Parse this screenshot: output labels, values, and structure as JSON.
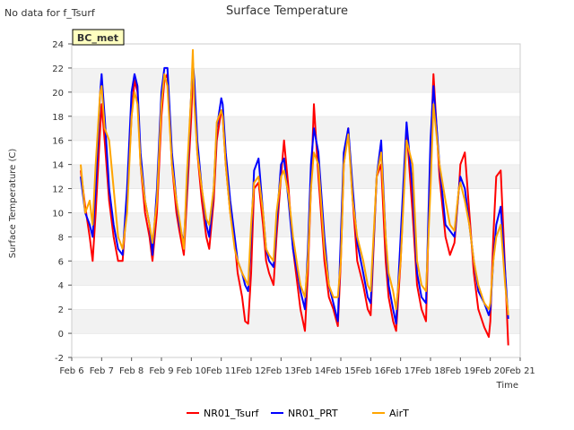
{
  "nodata_note": "No data for f_Tsurf",
  "site_badge": "BC_met",
  "chart_data": {
    "type": "line",
    "title": "Surface Temperature",
    "xlabel": "Time",
    "ylabel": "Surface Temperature (C)",
    "ylim": [
      -2,
      24
    ],
    "xlim": [
      6,
      21
    ],
    "yticks": [
      -2,
      0,
      2,
      4,
      6,
      8,
      10,
      12,
      14,
      16,
      18,
      20,
      22,
      24
    ],
    "xtick_values": [
      6,
      7,
      8,
      9,
      10,
      11,
      12,
      13,
      14,
      15,
      16,
      17,
      18,
      19,
      20,
      21
    ],
    "xtick_labels": [
      "Feb 6",
      "Feb 7",
      "Feb 8",
      "Feb 9",
      "Feb 10",
      "Feb 11",
      "Feb 12",
      "Feb 13",
      "Feb 14",
      "Feb 15",
      "Feb 16",
      "Feb 17",
      "Feb 18",
      "Feb 19",
      "Feb 20",
      "Feb 21"
    ],
    "grid": "horizontal bands",
    "legend_position": "bottom",
    "x_units": "day of February",
    "series": [
      {
        "name": "NR01_Tsurf",
        "color": "#ff0000",
        "x": [
          6.3,
          6.45,
          6.6,
          6.7,
          6.8,
          6.95,
          7.0,
          7.1,
          7.25,
          7.4,
          7.55,
          7.7,
          7.85,
          8.0,
          8.1,
          8.2,
          8.3,
          8.45,
          8.6,
          8.7,
          8.85,
          9.0,
          9.1,
          9.2,
          9.35,
          9.5,
          9.6,
          9.75,
          9.85,
          10.0,
          10.05,
          10.1,
          10.2,
          10.35,
          10.5,
          10.6,
          10.75,
          10.85,
          11.0,
          11.05,
          11.15,
          11.3,
          11.45,
          11.55,
          11.7,
          11.8,
          11.9,
          12.0,
          12.1,
          12.25,
          12.4,
          12.5,
          12.6,
          12.75,
          12.85,
          13.0,
          13.1,
          13.25,
          13.4,
          13.55,
          13.65,
          13.8,
          13.9,
          14.0,
          14.1,
          14.25,
          14.45,
          14.6,
          14.75,
          14.9,
          15.0,
          15.1,
          15.25,
          15.4,
          15.55,
          15.75,
          15.9,
          16.0,
          16.2,
          16.35,
          16.5,
          16.6,
          16.75,
          16.85,
          17.0,
          17.2,
          17.4,
          17.55,
          17.7,
          17.85,
          18.0,
          18.1,
          18.3,
          18.5,
          18.65,
          18.8,
          18.95,
          19.0,
          19.15,
          19.3,
          19.45,
          19.6,
          19.8,
          19.95,
          20.0,
          20.1,
          20.2,
          20.35,
          20.5,
          20.6
        ],
        "y": [
          13.5,
          10.5,
          8.0,
          6.0,
          10.0,
          17.0,
          19.0,
          16.0,
          11.0,
          8.0,
          6.0,
          6.0,
          11.0,
          18.0,
          21.0,
          20.0,
          14.0,
          10.0,
          8.0,
          6.0,
          10.0,
          18.0,
          21.0,
          21.5,
          14.0,
          10.0,
          8.5,
          6.5,
          11.0,
          18.0,
          21.5,
          20.0,
          15.0,
          11.0,
          8.0,
          7.0,
          11.0,
          16.0,
          18.5,
          18.0,
          14.0,
          10.0,
          7.5,
          5.0,
          3.0,
          1.0,
          0.8,
          5.0,
          12.0,
          12.5,
          9.0,
          6.0,
          5.0,
          4.0,
          8.0,
          13.0,
          16.0,
          12.0,
          7.0,
          4.0,
          2.0,
          0.2,
          5.0,
          12.0,
          19.0,
          13.0,
          6.0,
          3.0,
          2.0,
          0.6,
          6.0,
          14.0,
          17.0,
          11.0,
          6.0,
          4.0,
          2.0,
          1.5,
          13.0,
          14.0,
          6.0,
          3.0,
          1.0,
          0.2,
          6.0,
          17.0,
          10.0,
          4.0,
          2.0,
          1.0,
          15.0,
          21.5,
          13.0,
          8.0,
          6.5,
          7.5,
          12.0,
          14.0,
          15.0,
          10.0,
          5.0,
          2.0,
          0.5,
          -0.3,
          1.0,
          8.0,
          13.0,
          13.5,
          5.0,
          -1.0
        ]
      },
      {
        "name": "NR01_PRT",
        "color": "#0000ff",
        "x": [
          6.3,
          6.45,
          6.6,
          6.7,
          6.8,
          6.95,
          7.0,
          7.1,
          7.25,
          7.4,
          7.55,
          7.7,
          7.85,
          8.0,
          8.1,
          8.2,
          8.3,
          8.45,
          8.6,
          8.7,
          8.85,
          9.0,
          9.1,
          9.2,
          9.35,
          9.5,
          9.6,
          9.75,
          9.85,
          10.0,
          10.05,
          10.1,
          10.2,
          10.35,
          10.5,
          10.6,
          10.75,
          10.85,
          11.0,
          11.05,
          11.15,
          11.3,
          11.45,
          11.55,
          11.7,
          11.8,
          11.9,
          12.0,
          12.1,
          12.25,
          12.4,
          12.5,
          12.6,
          12.75,
          12.85,
          13.0,
          13.1,
          13.25,
          13.4,
          13.55,
          13.65,
          13.8,
          13.9,
          14.0,
          14.1,
          14.25,
          14.45,
          14.6,
          14.75,
          14.9,
          15.0,
          15.1,
          15.25,
          15.4,
          15.55,
          15.75,
          15.9,
          16.0,
          16.2,
          16.35,
          16.5,
          16.6,
          16.75,
          16.85,
          17.0,
          17.2,
          17.4,
          17.55,
          17.7,
          17.85,
          18.0,
          18.1,
          18.3,
          18.5,
          18.65,
          18.8,
          18.95,
          19.0,
          19.15,
          19.3,
          19.45,
          19.6,
          19.8,
          19.95,
          20.0,
          20.1,
          20.2,
          20.35,
          20.5,
          20.6
        ],
        "y": [
          13.0,
          10.0,
          9.0,
          8.0,
          12.0,
          20.0,
          21.5,
          18.0,
          12.0,
          9.0,
          7.0,
          6.5,
          12.0,
          20.0,
          21.5,
          20.5,
          15.0,
          11.0,
          9.0,
          6.5,
          12.0,
          20.0,
          22.0,
          22.0,
          15.0,
          11.0,
          9.0,
          7.5,
          12.0,
          20.0,
          22.5,
          21.0,
          16.0,
          12.0,
          9.0,
          8.0,
          12.0,
          17.0,
          19.5,
          19.0,
          15.0,
          11.0,
          8.0,
          6.0,
          5.0,
          4.0,
          3.5,
          8.0,
          13.5,
          14.5,
          10.0,
          7.0,
          6.0,
          5.5,
          9.0,
          14.0,
          14.5,
          11.0,
          7.0,
          5.0,
          3.5,
          2.0,
          7.0,
          14.0,
          17.0,
          15.0,
          8.0,
          4.0,
          2.5,
          1.0,
          8.0,
          15.0,
          17.0,
          12.0,
          7.5,
          5.0,
          3.0,
          2.5,
          13.0,
          16.0,
          8.0,
          4.0,
          2.0,
          0.8,
          8.0,
          17.5,
          12.0,
          5.0,
          3.0,
          2.5,
          16.0,
          20.5,
          14.0,
          9.0,
          8.5,
          8.0,
          12.0,
          13.0,
          12.0,
          9.0,
          6.0,
          3.5,
          2.5,
          1.5,
          2.0,
          6.0,
          9.0,
          10.5,
          5.0,
          1.2
        ]
      },
      {
        "name": "AirT",
        "color": "#ffa500",
        "x": [
          6.3,
          6.45,
          6.6,
          6.7,
          6.8,
          6.95,
          7.0,
          7.1,
          7.25,
          7.4,
          7.55,
          7.7,
          7.85,
          8.0,
          8.1,
          8.2,
          8.3,
          8.45,
          8.6,
          8.7,
          8.85,
          9.0,
          9.1,
          9.2,
          9.35,
          9.5,
          9.6,
          9.75,
          9.85,
          10.0,
          10.05,
          10.1,
          10.2,
          10.35,
          10.5,
          10.6,
          10.75,
          10.85,
          11.0,
          11.05,
          11.15,
          11.3,
          11.45,
          11.55,
          11.7,
          11.8,
          11.9,
          12.0,
          12.1,
          12.25,
          12.4,
          12.5,
          12.6,
          12.75,
          12.85,
          13.0,
          13.1,
          13.25,
          13.4,
          13.55,
          13.65,
          13.8,
          13.9,
          14.0,
          14.1,
          14.25,
          14.45,
          14.6,
          14.75,
          14.9,
          15.0,
          15.1,
          15.25,
          15.4,
          15.55,
          15.75,
          15.9,
          16.0,
          16.2,
          16.35,
          16.5,
          16.6,
          16.75,
          16.85,
          17.0,
          17.2,
          17.4,
          17.55,
          17.7,
          17.85,
          18.0,
          18.1,
          18.3,
          18.5,
          18.65,
          18.8,
          18.95,
          19.0,
          19.15,
          19.3,
          19.45,
          19.6,
          19.8,
          19.95,
          20.0,
          20.1,
          20.2,
          20.35,
          20.5,
          20.6
        ],
        "y": [
          14.0,
          10.0,
          11.0,
          9.0,
          14.0,
          20.0,
          20.5,
          17.0,
          16.0,
          12.0,
          8.0,
          7.0,
          10.0,
          18.0,
          20.0,
          19.0,
          14.0,
          11.0,
          9.0,
          7.5,
          11.0,
          19.0,
          21.5,
          20.5,
          14.0,
          11.0,
          9.5,
          7.0,
          13.0,
          20.0,
          23.5,
          19.0,
          15.0,
          12.0,
          9.5,
          9.0,
          12.0,
          17.5,
          18.5,
          18.0,
          14.0,
          10.0,
          7.0,
          6.0,
          5.0,
          4.5,
          4.0,
          9.0,
          12.5,
          13.0,
          10.0,
          7.0,
          6.5,
          6.0,
          10.0,
          13.0,
          13.5,
          11.5,
          8.0,
          5.5,
          4.0,
          3.0,
          6.0,
          12.0,
          15.0,
          14.0,
          7.0,
          4.0,
          3.0,
          3.0,
          6.0,
          14.0,
          16.5,
          11.0,
          8.0,
          6.0,
          4.0,
          3.5,
          13.0,
          15.0,
          8.0,
          5.0,
          3.5,
          2.0,
          6.0,
          16.0,
          14.0,
          6.0,
          4.0,
          3.5,
          12.0,
          19.0,
          14.0,
          11.0,
          9.0,
          8.5,
          12.0,
          12.5,
          11.0,
          9.0,
          6.0,
          4.0,
          2.5,
          2.0,
          2.5,
          6.0,
          8.0,
          9.0,
          4.0,
          1.5
        ]
      }
    ]
  }
}
